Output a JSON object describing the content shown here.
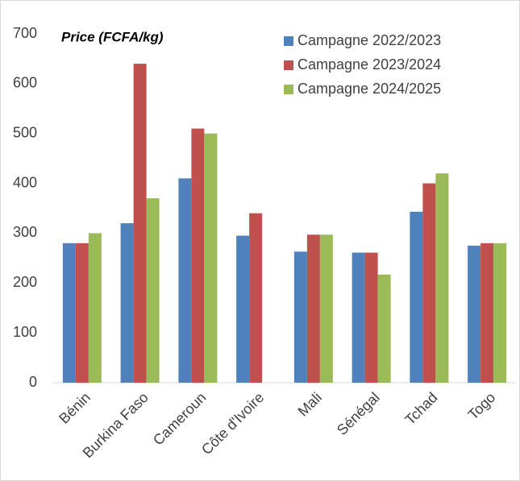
{
  "chart_data": {
    "type": "bar",
    "title": "Price (FCFA/kg)",
    "categories": [
      "Bénin",
      "Burkina Faso",
      "Cameroun",
      "Côte d'Ivoire",
      "Mali",
      "Sénégal",
      "Tchad",
      "Togo"
    ],
    "series": [
      {
        "name": "Campagne 2022/2023",
        "color": "#4f81bd",
        "values": [
          280,
          320,
          410,
          295,
          263,
          261,
          343,
          275
        ]
      },
      {
        "name": "Campagne 2023/2024",
        "color": "#c0504d",
        "values": [
          280,
          640,
          510,
          340,
          297,
          261,
          400,
          280
        ]
      },
      {
        "name": "Campagne 2024/2025",
        "color": "#9bbb59",
        "values": [
          300,
          370,
          500,
          null,
          297,
          217,
          420,
          280
        ]
      }
    ],
    "ylim": [
      0,
      700
    ],
    "yticks": [
      0,
      100,
      200,
      300,
      400,
      500,
      600,
      700
    ],
    "grid": false,
    "legend": "top-right"
  }
}
